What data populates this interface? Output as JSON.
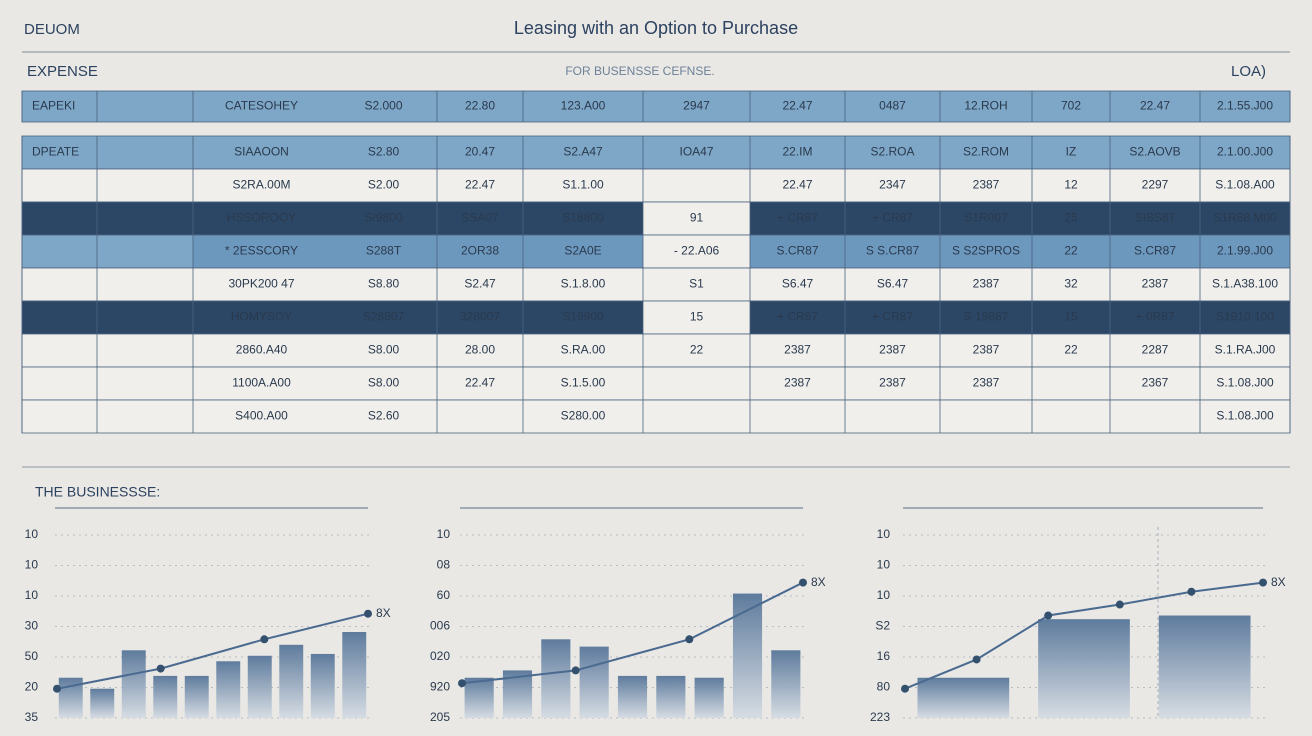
{
  "header": {
    "brand": "DEUOM",
    "title": "Leasing with an Option to Purchase",
    "left": "EXPENSE",
    "center": "FOR BUSENSSE CEFNSE.",
    "right": "LOA)"
  },
  "table": {
    "header": [
      "EAPEKI",
      null,
      "CATESOHEY",
      "S2.000",
      "22.80",
      "123.A00",
      "2947",
      "22.47",
      "0487",
      "12.ROH",
      "702",
      "22.47",
      "2.1.55.J00"
    ],
    "rows": [
      [
        "DPEATE",
        null,
        "SIAAOON",
        "S2.80",
        "20.47",
        "S2.A47",
        "IOA47",
        "22.IM",
        "S2.ROA",
        "S2.ROM",
        "IZ",
        "S2.AOVB",
        "2.1.00.J00"
      ],
      [
        null,
        null,
        "S2RA.00M",
        "S2.00",
        "22.47",
        "S1.1.00",
        null,
        "22.47",
        "2347",
        "2387",
        "12",
        "2297",
        "S.1.08.A00"
      ],
      [
        null,
        null,
        "HSSOROOY",
        "S/9800",
        "SSA07",
        "S18800",
        "91",
        "+ CR87",
        "+ CR87",
        "S1R007",
        "25",
        "SISS87",
        "S1R88.M00"
      ],
      [
        null,
        null,
        "* 2ESSCORY",
        "S288T",
        "2OR38",
        "S2A0E",
        "- 22.A06",
        "S.CR87",
        "S S.CR87",
        "S S2SPROS",
        "22",
        "S.CR87",
        "2.1.99.J00"
      ],
      [
        null,
        null,
        "30PK200 47",
        "S8.80",
        "S2.47",
        "S.1.8.00",
        "S1",
        "S6.47",
        "S6.47",
        "2387",
        "32",
        "2387",
        "S.1.A38.100"
      ],
      [
        null,
        null,
        "HOMYSOY",
        "S28807",
        "328007",
        "S19900",
        "15",
        "+ CR87",
        "+ CR87",
        "S 19887",
        "15",
        "+ 0R87",
        "S1910.100"
      ],
      [
        null,
        null,
        "2860.A40",
        "S8.00",
        "28.00",
        "S.RA.00",
        "22",
        "2387",
        "2387",
        "2387",
        "22",
        "2287",
        "S.1.RA.J00"
      ],
      [
        null,
        null,
        "1100A.A00",
        "S8.00",
        "22.47",
        "S.1.5.00",
        null,
        "2387",
        "2387",
        "2387",
        null,
        "2367",
        "S.1.08.J00"
      ],
      [
        null,
        null,
        "S400.A00",
        "S2.60",
        null,
        "S280.00",
        null,
        null,
        null,
        null,
        null,
        null,
        "S.1.08.J00"
      ]
    ]
  },
  "section_title": "THE BUSINESSSE:",
  "charts": [
    {
      "y_labels": [
        "10",
        "10",
        "10",
        "30",
        "50",
        "20",
        "35"
      ],
      "ylim": [
        0,
        100
      ],
      "bars": [
        22,
        16,
        37,
        23,
        23,
        31,
        34,
        40,
        35,
        47
      ],
      "line": [
        16,
        27,
        43,
        57
      ],
      "end_label": "8X"
    },
    {
      "y_labels": [
        "10",
        "08",
        "60",
        "006",
        "020",
        "920",
        "205"
      ],
      "ylim": [
        0,
        100
      ],
      "bars": [
        22,
        26,
        43,
        39,
        23,
        23,
        22,
        68,
        37
      ],
      "line": [
        19,
        26,
        43,
        74
      ],
      "end_label": "8X"
    },
    {
      "y_labels": [
        "10",
        "10",
        "10",
        "S2",
        "16",
        "80",
        "223"
      ],
      "ylim": [
        0,
        100
      ],
      "bars": [
        22,
        54,
        56
      ],
      "line": [
        16,
        32,
        56,
        62,
        69,
        74
      ],
      "end_label": "8X"
    }
  ]
}
